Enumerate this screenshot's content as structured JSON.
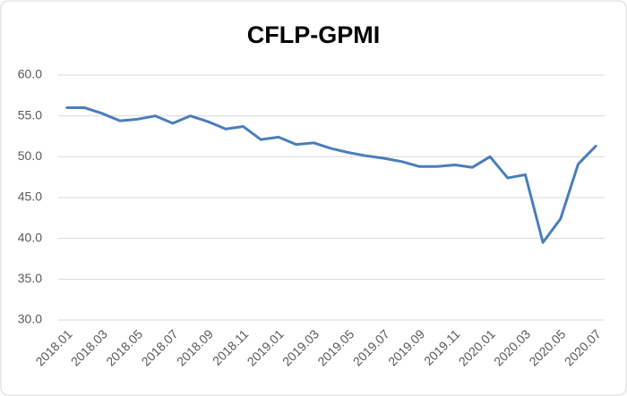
{
  "chart_data": {
    "type": "line",
    "title": "CFLP-GPMI",
    "categories": [
      "2018.01",
      null,
      "2018.03",
      null,
      "2018.05",
      null,
      "2018.07",
      null,
      "2018.09",
      null,
      "2018.11",
      null,
      "2019.01",
      null,
      "2019.03",
      null,
      "2019.05",
      null,
      "2019.07",
      null,
      "2019.09",
      null,
      "2019.11",
      null,
      "2020.01",
      null,
      "2020.03",
      null,
      "2020.05",
      null,
      "2020.07"
    ],
    "values": [
      56.0,
      56.0,
      55.3,
      54.4,
      54.6,
      55.0,
      54.1,
      55.0,
      54.3,
      53.4,
      53.7,
      52.1,
      52.4,
      51.5,
      51.7,
      51.0,
      50.5,
      50.1,
      49.8,
      49.4,
      48.8,
      48.8,
      49.0,
      48.7,
      50.0,
      47.4,
      47.8,
      39.5,
      42.4,
      49.1,
      51.3
    ],
    "color": "#4a7ebb",
    "ylim": [
      30,
      60
    ],
    "yticks": [
      {
        "value": 30,
        "label": "30.0"
      },
      {
        "value": 35,
        "label": "35.0"
      },
      {
        "value": 40,
        "label": "40.0"
      },
      {
        "value": 45,
        "label": "45.0"
      },
      {
        "value": 50,
        "label": "50.0"
      },
      {
        "value": 55,
        "label": "55.0"
      },
      {
        "value": 60,
        "label": "60.0"
      }
    ],
    "grid": true
  }
}
